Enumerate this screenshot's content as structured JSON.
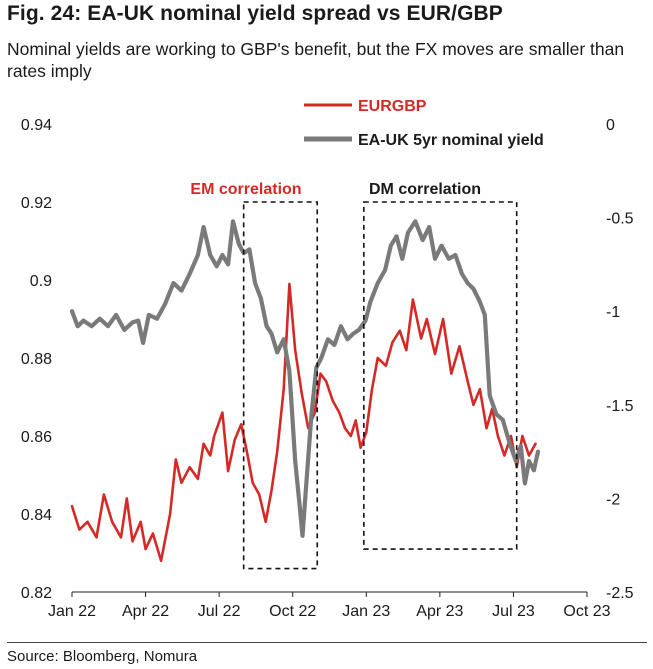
{
  "title": "Fig. 24: EA-UK nominal yield spread vs EUR/GBP",
  "subtitle": "Nominal yields are working to GBP's benefit, but the FX moves are smaller than rates imply",
  "source": "Source: Bloomberg, Nomura",
  "colors": {
    "eurgbp": "#d42a26",
    "spread": "#7a7a7a",
    "text": "#1a1a1a",
    "box": "#111111"
  },
  "chart_data": {
    "type": "line",
    "title": "Fig. 24: EA-UK nominal yield spread vs EUR/GBP",
    "x_range": [
      "2022-01",
      "2023-10"
    ],
    "x_ticks": [
      "Jan 22",
      "Apr 22",
      "Jul 22",
      "Oct 22",
      "Jan 23",
      "Apr 23",
      "Jul 23",
      "Oct 23"
    ],
    "y_left": {
      "label": "EURGBP",
      "range": [
        0.82,
        0.94
      ],
      "ticks": [
        "0.82",
        "0.84",
        "0.86",
        "0.88",
        "0.9",
        "0.92",
        "0.94"
      ],
      "tick_values": [
        0.82,
        0.84,
        0.86,
        0.88,
        0.9,
        0.92,
        0.94
      ]
    },
    "y_right": {
      "label": "EA-UK 5yr nominal yield",
      "range": [
        -2.5,
        0
      ],
      "ticks": [
        "-2.5",
        "-2",
        "-1.5",
        "-1",
        "-0.5",
        "0"
      ],
      "tick_values": [
        -2.5,
        -2.0,
        -1.5,
        -1.0,
        -0.5,
        0.0
      ]
    },
    "legend": {
      "placement": "top-right",
      "entries": [
        "EURGBP",
        "EA-UK 5yr nominal yield"
      ]
    },
    "annotations": [
      {
        "label": "EM correlation",
        "from": "2022-08",
        "to": "2022-11",
        "y_top": 0.92,
        "y_bottom": 0.826
      },
      {
        "label": "DM correlation",
        "from": "2022-12-28",
        "to": "2023-07-05",
        "y_top": 0.92,
        "y_bottom": 0.831
      }
    ],
    "series": [
      {
        "name": "EURGBP",
        "axis": "left",
        "points": [
          [
            "2022-01-01",
            0.842
          ],
          [
            "2022-01-10",
            0.836
          ],
          [
            "2022-01-20",
            0.838
          ],
          [
            "2022-02-01",
            0.834
          ],
          [
            "2022-02-10",
            0.845
          ],
          [
            "2022-02-20",
            0.838
          ],
          [
            "2022-03-01",
            0.834
          ],
          [
            "2022-03-08",
            0.844
          ],
          [
            "2022-03-15",
            0.833
          ],
          [
            "2022-03-25",
            0.838
          ],
          [
            "2022-04-01",
            0.831
          ],
          [
            "2022-04-10",
            0.835
          ],
          [
            "2022-04-20",
            0.828
          ],
          [
            "2022-05-01",
            0.84
          ],
          [
            "2022-05-08",
            0.854
          ],
          [
            "2022-05-15",
            0.848
          ],
          [
            "2022-05-25",
            0.852
          ],
          [
            "2022-06-05",
            0.849
          ],
          [
            "2022-06-12",
            0.858
          ],
          [
            "2022-06-20",
            0.855
          ],
          [
            "2022-06-25",
            0.86
          ],
          [
            "2022-07-05",
            0.866
          ],
          [
            "2022-07-12",
            0.851
          ],
          [
            "2022-07-20",
            0.859
          ],
          [
            "2022-07-28",
            0.863
          ],
          [
            "2022-08-05",
            0.856
          ],
          [
            "2022-08-12",
            0.848
          ],
          [
            "2022-08-20",
            0.845
          ],
          [
            "2022-08-28",
            0.838
          ],
          [
            "2022-09-05",
            0.846
          ],
          [
            "2022-09-12",
            0.856
          ],
          [
            "2022-09-20",
            0.872
          ],
          [
            "2022-09-27",
            0.899
          ],
          [
            "2022-10-04",
            0.882
          ],
          [
            "2022-10-12",
            0.871
          ],
          [
            "2022-10-20",
            0.862
          ],
          [
            "2022-10-28",
            0.866
          ],
          [
            "2022-11-05",
            0.876
          ],
          [
            "2022-11-12",
            0.874
          ],
          [
            "2022-11-20",
            0.869
          ],
          [
            "2022-11-28",
            0.866
          ],
          [
            "2022-12-05",
            0.862
          ],
          [
            "2022-12-12",
            0.86
          ],
          [
            "2022-12-18",
            0.864
          ],
          [
            "2022-12-24",
            0.857
          ],
          [
            "2023-01-01",
            0.861
          ],
          [
            "2023-01-08",
            0.872
          ],
          [
            "2023-01-15",
            0.88
          ],
          [
            "2023-01-25",
            0.878
          ],
          [
            "2023-02-03",
            0.884
          ],
          [
            "2023-02-12",
            0.887
          ],
          [
            "2023-02-20",
            0.882
          ],
          [
            "2023-02-28",
            0.895
          ],
          [
            "2023-03-08",
            0.885
          ],
          [
            "2023-03-15",
            0.89
          ],
          [
            "2023-03-25",
            0.881
          ],
          [
            "2023-04-05",
            0.89
          ],
          [
            "2023-04-15",
            0.876
          ],
          [
            "2023-04-25",
            0.883
          ],
          [
            "2023-05-05",
            0.874
          ],
          [
            "2023-05-12",
            0.868
          ],
          [
            "2023-05-20",
            0.872
          ],
          [
            "2023-05-28",
            0.862
          ],
          [
            "2023-06-05",
            0.867
          ],
          [
            "2023-06-12",
            0.86
          ],
          [
            "2023-06-20",
            0.855
          ],
          [
            "2023-06-28",
            0.86
          ],
          [
            "2023-07-05",
            0.852
          ],
          [
            "2023-07-12",
            0.86
          ],
          [
            "2023-07-20",
            0.855
          ],
          [
            "2023-07-28",
            0.858
          ]
        ]
      },
      {
        "name": "EA-UK 5yr nominal yield",
        "axis": "right",
        "points": [
          [
            "2022-01-01",
            -1.0
          ],
          [
            "2022-01-08",
            -1.08
          ],
          [
            "2022-01-15",
            -1.05
          ],
          [
            "2022-01-25",
            -1.08
          ],
          [
            "2022-02-05",
            -1.04
          ],
          [
            "2022-02-15",
            -1.08
          ],
          [
            "2022-02-25",
            -1.02
          ],
          [
            "2022-03-05",
            -1.1
          ],
          [
            "2022-03-15",
            -1.06
          ],
          [
            "2022-03-22",
            -1.05
          ],
          [
            "2022-03-28",
            -1.17
          ],
          [
            "2022-04-05",
            -1.02
          ],
          [
            "2022-04-15",
            -1.04
          ],
          [
            "2022-04-25",
            -0.96
          ],
          [
            "2022-05-05",
            -0.85
          ],
          [
            "2022-05-15",
            -0.89
          ],
          [
            "2022-05-25",
            -0.8
          ],
          [
            "2022-06-05",
            -0.7
          ],
          [
            "2022-06-12",
            -0.55
          ],
          [
            "2022-06-20",
            -0.7
          ],
          [
            "2022-06-28",
            -0.76
          ],
          [
            "2022-07-05",
            -0.7
          ],
          [
            "2022-07-12",
            -0.75
          ],
          [
            "2022-07-18",
            -0.52
          ],
          [
            "2022-07-25",
            -0.64
          ],
          [
            "2022-08-01",
            -0.69
          ],
          [
            "2022-08-08",
            -0.67
          ],
          [
            "2022-08-15",
            -0.85
          ],
          [
            "2022-08-22",
            -0.93
          ],
          [
            "2022-08-29",
            -1.08
          ],
          [
            "2022-09-05",
            -1.12
          ],
          [
            "2022-09-12",
            -1.22
          ],
          [
            "2022-09-20",
            -1.15
          ],
          [
            "2022-09-27",
            -1.32
          ],
          [
            "2022-10-04",
            -1.8
          ],
          [
            "2022-10-09",
            -2.02
          ],
          [
            "2022-10-13",
            -2.2
          ],
          [
            "2022-10-18",
            -1.9
          ],
          [
            "2022-10-24",
            -1.55
          ],
          [
            "2022-10-30",
            -1.3
          ],
          [
            "2022-11-06",
            -1.25
          ],
          [
            "2022-11-14",
            -1.15
          ],
          [
            "2022-11-22",
            -1.18
          ],
          [
            "2022-11-30",
            -1.08
          ],
          [
            "2022-12-08",
            -1.15
          ],
          [
            "2022-12-15",
            -1.12
          ],
          [
            "2022-12-22",
            -1.1
          ],
          [
            "2022-12-30",
            -1.05
          ],
          [
            "2023-01-06",
            -0.95
          ],
          [
            "2023-01-15",
            -0.85
          ],
          [
            "2023-01-24",
            -0.78
          ],
          [
            "2023-02-01",
            -0.65
          ],
          [
            "2023-02-08",
            -0.6
          ],
          [
            "2023-02-15",
            -0.72
          ],
          [
            "2023-02-22",
            -0.58
          ],
          [
            "2023-03-01",
            -0.52
          ],
          [
            "2023-03-10",
            -0.62
          ],
          [
            "2023-03-18",
            -0.55
          ],
          [
            "2023-03-25",
            -0.72
          ],
          [
            "2023-04-03",
            -0.65
          ],
          [
            "2023-04-12",
            -0.72
          ],
          [
            "2023-04-20",
            -0.7
          ],
          [
            "2023-04-28",
            -0.8
          ],
          [
            "2023-05-05",
            -0.85
          ],
          [
            "2023-05-12",
            -0.88
          ],
          [
            "2023-05-20",
            -0.95
          ],
          [
            "2023-05-26",
            -1.02
          ],
          [
            "2023-06-02",
            -1.45
          ],
          [
            "2023-06-10",
            -1.55
          ],
          [
            "2023-06-18",
            -1.58
          ],
          [
            "2023-06-26",
            -1.7
          ],
          [
            "2023-07-04",
            -1.8
          ],
          [
            "2023-07-10",
            -1.72
          ],
          [
            "2023-07-15",
            -1.92
          ],
          [
            "2023-07-20",
            -1.8
          ],
          [
            "2023-07-26",
            -1.85
          ],
          [
            "2023-08-01",
            -1.75
          ]
        ]
      }
    ]
  }
}
